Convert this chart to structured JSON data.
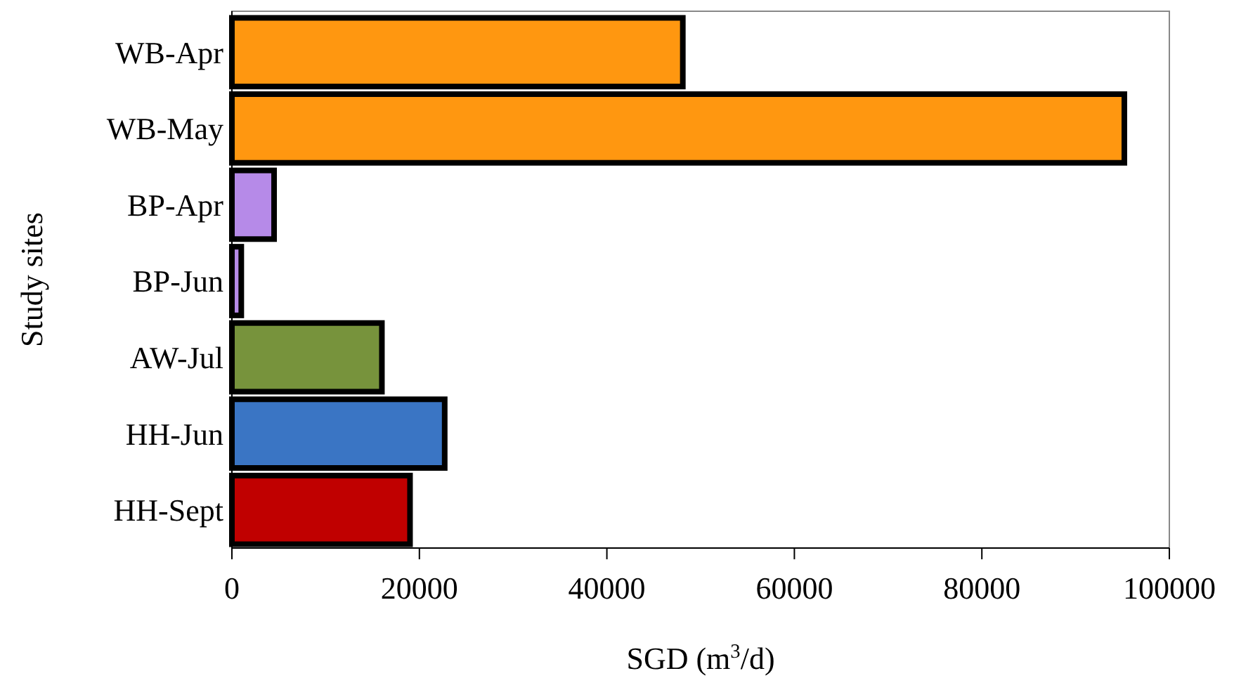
{
  "chart_data": {
    "type": "bar",
    "orientation": "horizontal",
    "xlabel": "SGD (m$^{3}$/d)",
    "ylabel": "Study sites",
    "categories": [
      "WB-Apr",
      "WB-May",
      "BP-Apr",
      "BP-Jun",
      "AW-Jul",
      "HH-Jun",
      "HH-Sept"
    ],
    "values": [
      48100,
      95200,
      4500,
      1000,
      16000,
      22700,
      19000
    ],
    "colors": [
      "#ff9710",
      "#ff9710",
      "#b68ae8",
      "#b68ae8",
      "#77933c",
      "#3a75c4",
      "#c00000"
    ],
    "xlim": [
      0,
      100000
    ],
    "xticks": [
      0,
      20000,
      40000,
      60000,
      80000,
      100000
    ],
    "grid": false
  }
}
